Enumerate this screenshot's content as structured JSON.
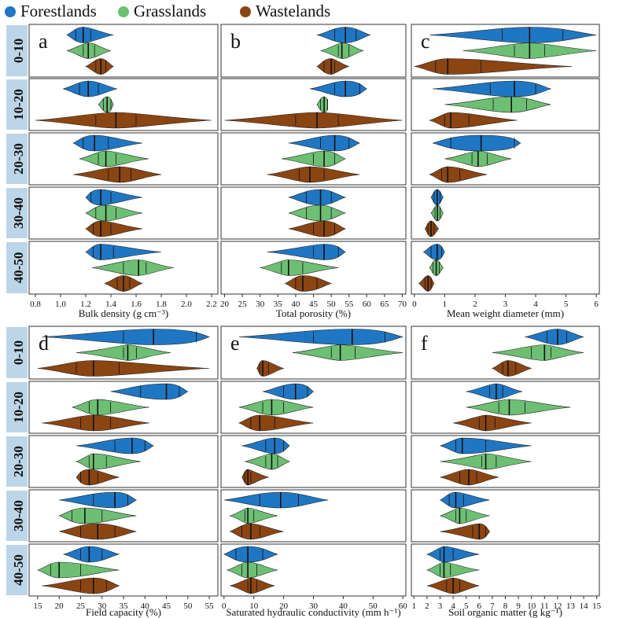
{
  "legend": {
    "items": [
      {
        "label": "Forestlands",
        "color": "#1f77c4"
      },
      {
        "label": "Grasslands",
        "color": "#6dbf73"
      },
      {
        "label": "Wastelands",
        "color": "#8b4513"
      }
    ]
  },
  "depth_labels": [
    "0-10",
    "10-20",
    "20-30",
    "30-40",
    "40-50"
  ],
  "chart_data": [
    {
      "type": "violin",
      "panel": "a",
      "xlabel": "Bulk density (g cm⁻³)",
      "xlim": [
        0.75,
        2.25
      ],
      "ticks": [
        0.8,
        1.0,
        1.2,
        1.4,
        1.6,
        1.8,
        2.0,
        2.2
      ],
      "series": [
        {
          "name": "Forestlands",
          "depths": [
            {
              "min": 1.05,
              "max": 1.42,
              "q1": 1.12,
              "median": 1.18,
              "q3": 1.24
            },
            {
              "min": 1.02,
              "max": 1.45,
              "q1": 1.15,
              "median": 1.22,
              "q3": 1.3
            },
            {
              "min": 1.1,
              "max": 1.65,
              "q1": 1.18,
              "median": 1.27,
              "q3": 1.38
            },
            {
              "min": 1.2,
              "max": 1.65,
              "q1": 1.24,
              "median": 1.32,
              "q3": 1.4
            },
            {
              "min": 1.2,
              "max": 1.8,
              "q1": 1.26,
              "median": 1.32,
              "q3": 1.42
            }
          ]
        },
        {
          "name": "Grasslands",
          "depths": [
            {
              "min": 1.05,
              "max": 1.4,
              "q1": 1.18,
              "median": 1.22,
              "q3": 1.27
            },
            {
              "min": 1.3,
              "max": 1.42,
              "q1": 1.34,
              "median": 1.37,
              "q3": 1.4
            },
            {
              "min": 1.15,
              "max": 1.7,
              "q1": 1.3,
              "median": 1.36,
              "q3": 1.44
            },
            {
              "min": 1.2,
              "max": 1.65,
              "q1": 1.28,
              "median": 1.36,
              "q3": 1.44
            },
            {
              "min": 1.25,
              "max": 1.9,
              "q1": 1.5,
              "median": 1.62,
              "q3": 1.68
            }
          ]
        },
        {
          "name": "Wastelands",
          "depths": [
            {
              "min": 1.2,
              "max": 1.42,
              "q1": 1.28,
              "median": 1.32,
              "q3": 1.36
            },
            {
              "min": 0.8,
              "max": 2.2,
              "q1": 1.28,
              "median": 1.44,
              "q3": 1.6
            },
            {
              "min": 1.1,
              "max": 1.8,
              "q1": 1.38,
              "median": 1.47,
              "q3": 1.56
            },
            {
              "min": 1.2,
              "max": 1.65,
              "q1": 1.26,
              "median": 1.32,
              "q3": 1.4
            },
            {
              "min": 1.35,
              "max": 1.65,
              "q1": 1.45,
              "median": 1.5,
              "q3": 1.55
            }
          ]
        }
      ]
    },
    {
      "type": "violin",
      "panel": "b",
      "xlabel": "Total porosity (%)",
      "xlim": [
        19,
        71
      ],
      "ticks": [
        20,
        25,
        30,
        35,
        40,
        45,
        50,
        55,
        60,
        65,
        70
      ],
      "series": [
        {
          "name": "Forestlands",
          "depths": [
            {
              "min": 46,
              "max": 61,
              "q1": 51,
              "median": 54,
              "q3": 57
            },
            {
              "min": 44,
              "max": 60,
              "q1": 51,
              "median": 54,
              "q3": 58
            },
            {
              "min": 38,
              "max": 58,
              "q1": 47,
              "median": 51,
              "q3": 55
            },
            {
              "min": 38,
              "max": 54,
              "q1": 43,
              "median": 47,
              "q3": 50
            },
            {
              "min": 32,
              "max": 54,
              "q1": 45,
              "median": 48,
              "q3": 52
            }
          ]
        },
        {
          "name": "Grasslands",
          "depths": [
            {
              "min": 47,
              "max": 59,
              "q1": 52,
              "median": 53,
              "q3": 55
            },
            {
              "min": 46,
              "max": 49,
              "q1": 47,
              "median": 48,
              "q3": 49
            },
            {
              "min": 36,
              "max": 54,
              "q1": 45,
              "median": 48,
              "q3": 51
            },
            {
              "min": 38,
              "max": 54,
              "q1": 43,
              "median": 47,
              "q3": 50
            },
            {
              "min": 30,
              "max": 52,
              "q1": 36,
              "median": 38,
              "q3": 42
            }
          ]
        },
        {
          "name": "Wastelands",
          "depths": [
            {
              "min": 46,
              "max": 55,
              "q1": 48,
              "median": 50,
              "q3": 51
            },
            {
              "min": 20,
              "max": 70,
              "q1": 40,
              "median": 46,
              "q3": 52
            },
            {
              "min": 32,
              "max": 58,
              "q1": 41,
              "median": 44,
              "q3": 48
            },
            {
              "min": 38,
              "max": 54,
              "q1": 45,
              "median": 48,
              "q3": 51
            },
            {
              "min": 37,
              "max": 50,
              "q1": 40,
              "median": 42,
              "q3": 46
            }
          ]
        }
      ]
    },
    {
      "type": "violin",
      "panel": "c",
      "xlabel": "Mean weight diameter (mm)",
      "xlim": [
        -0.1,
        6.1
      ],
      "ticks": [
        0,
        1,
        2,
        3,
        4,
        5,
        6
      ],
      "series": [
        {
          "name": "Forestlands",
          "depths": [
            {
              "min": 0.5,
              "max": 6.0,
              "q1": 2.9,
              "median": 3.8,
              "q3": 4.9
            },
            {
              "min": 0.6,
              "max": 4.5,
              "q1": 2.5,
              "median": 3.3,
              "q3": 4.0
            },
            {
              "min": 0.6,
              "max": 3.5,
              "q1": 1.2,
              "median": 2.2,
              "q3": 3.3
            },
            {
              "min": 0.55,
              "max": 0.95,
              "q1": 0.65,
              "median": 0.75,
              "q3": 0.85
            },
            {
              "min": 0.3,
              "max": 1.0,
              "q1": 0.55,
              "median": 0.75,
              "q3": 0.9
            }
          ]
        },
        {
          "name": "Grasslands",
          "depths": [
            {
              "min": 1.6,
              "max": 6.0,
              "q1": 3.3,
              "median": 3.8,
              "q3": 4.3
            },
            {
              "min": 1.0,
              "max": 4.5,
              "q1": 2.6,
              "median": 3.2,
              "q3": 3.7
            },
            {
              "min": 1.0,
              "max": 3.2,
              "q1": 1.9,
              "median": 2.1,
              "q3": 2.4
            },
            {
              "min": 0.55,
              "max": 0.95,
              "q1": 0.68,
              "median": 0.76,
              "q3": 0.85
            },
            {
              "min": 0.5,
              "max": 0.95,
              "q1": 0.62,
              "median": 0.72,
              "q3": 0.82
            }
          ]
        },
        {
          "name": "Wastelands",
          "depths": [
            {
              "min": 0.0,
              "max": 5.2,
              "q1": 0.7,
              "median": 1.1,
              "q3": 2.2
            },
            {
              "min": 0.5,
              "max": 3.4,
              "q1": 1.0,
              "median": 1.2,
              "q3": 1.8
            },
            {
              "min": 0.5,
              "max": 2.4,
              "q1": 0.9,
              "median": 1.1,
              "q3": 1.5
            },
            {
              "min": 0.35,
              "max": 0.8,
              "q1": 0.45,
              "median": 0.55,
              "q3": 0.65
            },
            {
              "min": 0.15,
              "max": 0.65,
              "q1": 0.35,
              "median": 0.45,
              "q3": 0.55
            }
          ]
        }
      ]
    },
    {
      "type": "violin",
      "panel": "d",
      "xlabel": "Field capacity (%)",
      "xlim": [
        13,
        57
      ],
      "ticks": [
        15,
        20,
        25,
        30,
        35,
        40,
        45,
        50,
        55
      ],
      "series": [
        {
          "name": "Forestlands",
          "depths": [
            {
              "min": 16,
              "max": 55,
              "q1": 35,
              "median": 42,
              "q3": 52
            },
            {
              "min": 32,
              "max": 50,
              "q1": 39,
              "median": 45,
              "q3": 48
            },
            {
              "min": 24,
              "max": 42,
              "q1": 33,
              "median": 37,
              "q3": 40
            },
            {
              "min": 20,
              "max": 38,
              "q1": 28,
              "median": 33,
              "q3": 36
            },
            {
              "min": 21,
              "max": 34,
              "q1": 25,
              "median": 27,
              "q3": 30
            }
          ]
        },
        {
          "name": "Grasslands",
          "depths": [
            {
              "min": 24,
              "max": 46,
              "q1": 35,
              "median": 36,
              "q3": 38
            },
            {
              "min": 23,
              "max": 41,
              "q1": 27,
              "median": 29,
              "q3": 32
            },
            {
              "min": 24,
              "max": 39,
              "q1": 27,
              "median": 28,
              "q3": 31
            },
            {
              "min": 20,
              "max": 38,
              "q1": 23,
              "median": 26,
              "q3": 30
            },
            {
              "min": 15,
              "max": 34,
              "q1": 18,
              "median": 20,
              "q3": 25
            }
          ]
        },
        {
          "name": "Wastelands",
          "depths": [
            {
              "min": 15,
              "max": 55,
              "q1": 24,
              "median": 28,
              "q3": 34
            },
            {
              "min": 16,
              "max": 41,
              "q1": 25,
              "median": 28,
              "q3": 32
            },
            {
              "min": 24,
              "max": 34,
              "q1": 25,
              "median": 27,
              "q3": 29
            },
            {
              "min": 20,
              "max": 38,
              "q1": 25,
              "median": 29,
              "q3": 33
            },
            {
              "min": 16,
              "max": 34,
              "q1": 25,
              "median": 28,
              "q3": 31
            }
          ]
        }
      ]
    },
    {
      "type": "violin",
      "panel": "e",
      "xlabel": "Saturated hydraulic conductivity (mm h⁻¹)",
      "xlim": [
        -1,
        61
      ],
      "ticks": [
        0,
        10,
        20,
        30,
        40,
        50,
        60
      ],
      "series": [
        {
          "name": "Forestlands",
          "depths": [
            {
              "min": 5,
              "max": 60,
              "q1": 30,
              "median": 43,
              "q3": 54
            },
            {
              "min": 13,
              "max": 30,
              "q1": 20,
              "median": 24,
              "q3": 28
            },
            {
              "min": 6,
              "max": 22,
              "q1": 14,
              "median": 17,
              "q3": 20
            },
            {
              "min": 0,
              "max": 35,
              "q1": 12,
              "median": 19,
              "q3": 25
            },
            {
              "min": 0,
              "max": 18,
              "q1": 4,
              "median": 8,
              "q3": 13
            }
          ]
        },
        {
          "name": "Grasslands",
          "depths": [
            {
              "min": 23,
              "max": 60,
              "q1": 36,
              "median": 39,
              "q3": 44
            },
            {
              "min": 5,
              "max": 30,
              "q1": 13,
              "median": 16,
              "q3": 20
            },
            {
              "min": 7,
              "max": 22,
              "q1": 14,
              "median": 16,
              "q3": 18
            },
            {
              "min": 2,
              "max": 18,
              "q1": 7,
              "median": 8,
              "q3": 10
            },
            {
              "min": 1,
              "max": 18,
              "q1": 6,
              "median": 8,
              "q3": 11
            }
          ]
        },
        {
          "name": "Wastelands",
          "depths": [
            {
              "min": 11,
              "max": 20,
              "q1": 12,
              "median": 13,
              "q3": 15
            },
            {
              "min": 5,
              "max": 30,
              "q1": 9,
              "median": 12,
              "q3": 17
            },
            {
              "min": 6,
              "max": 15,
              "q1": 7,
              "median": 8,
              "q3": 9
            },
            {
              "min": 2,
              "max": 20,
              "q1": 6,
              "median": 9,
              "q3": 12
            },
            {
              "min": 2,
              "max": 17,
              "q1": 8,
              "median": 9,
              "q3": 11
            }
          ]
        }
      ]
    },
    {
      "type": "violin",
      "panel": "f",
      "xlabel": "Soil organic matter (g kg⁻¹)",
      "xlim": [
        0.8,
        15.2
      ],
      "ticks": [
        1,
        2,
        3,
        4,
        5,
        6,
        7,
        8,
        9,
        10,
        11,
        12,
        13,
        14,
        15
      ],
      "series": [
        {
          "name": "Forestlands",
          "depths": [
            {
              "min": 9.5,
              "max": 14,
              "q1": 11.2,
              "median": 12.0,
              "q3": 12.7
            },
            {
              "min": 5.0,
              "max": 9.3,
              "q1": 6.8,
              "median": 7.3,
              "q3": 7.8
            },
            {
              "min": 3.0,
              "max": 10.0,
              "q1": 4.2,
              "median": 4.7,
              "q3": 6.5
            },
            {
              "min": 3.0,
              "max": 6.8,
              "q1": 3.7,
              "median": 4.2,
              "q3": 4.8
            },
            {
              "min": 2.0,
              "max": 6.0,
              "q1": 3.0,
              "median": 3.3,
              "q3": 4.0
            }
          ]
        },
        {
          "name": "Grasslands",
          "depths": [
            {
              "min": 7.0,
              "max": 14,
              "q1": 10.0,
              "median": 11.0,
              "q3": 11.5
            },
            {
              "min": 5.0,
              "max": 13,
              "q1": 7.5,
              "median": 8.3,
              "q3": 9.5
            },
            {
              "min": 3.0,
              "max": 10.0,
              "q1": 6.2,
              "median": 6.5,
              "q3": 7.3
            },
            {
              "min": 3.0,
              "max": 6.8,
              "q1": 4.2,
              "median": 4.5,
              "q3": 5.0
            },
            {
              "min": 2.0,
              "max": 6.0,
              "q1": 3.0,
              "median": 3.3,
              "q3": 3.8
            }
          ]
        },
        {
          "name": "Wastelands",
          "depths": [
            {
              "min": 7.0,
              "max": 10.0,
              "q1": 7.8,
              "median": 8.2,
              "q3": 8.8
            },
            {
              "min": 4.0,
              "max": 10.0,
              "q1": 6.0,
              "median": 6.5,
              "q3": 7.2
            },
            {
              "min": 3.0,
              "max": 7.5,
              "q1": 4.5,
              "median": 5.2,
              "q3": 5.8
            },
            {
              "min": 3.0,
              "max": 6.8,
              "q1": 5.5,
              "median": 6.0,
              "q3": 6.5
            },
            {
              "min": 2.0,
              "max": 6.0,
              "q1": 3.5,
              "median": 4.0,
              "q3": 4.5
            }
          ]
        }
      ]
    }
  ]
}
